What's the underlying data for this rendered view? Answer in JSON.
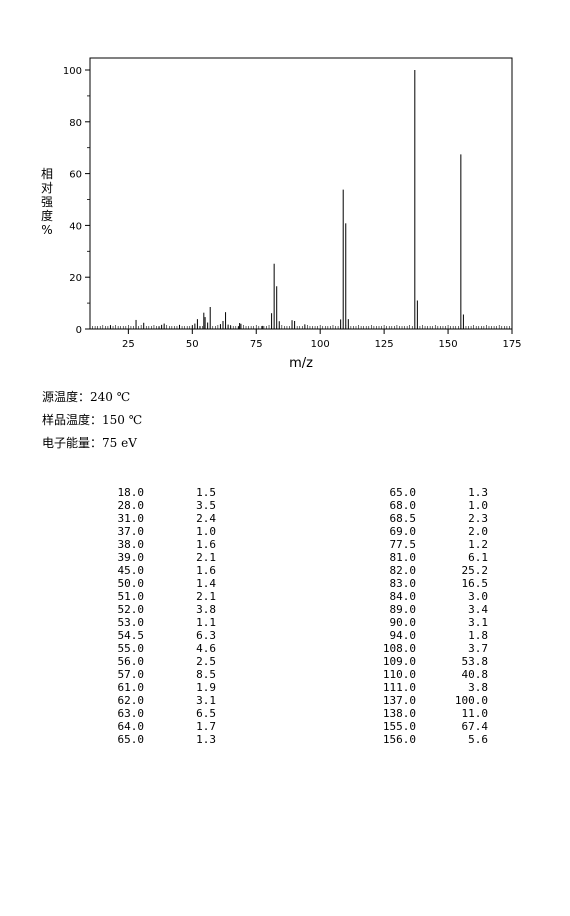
{
  "chart_data": {
    "type": "bar",
    "xlabel": "m/z",
    "ylabel": "相对强度%",
    "xlim": [
      10,
      175
    ],
    "ylim": [
      0,
      105
    ],
    "xticks": [
      25,
      50,
      75,
      100,
      125,
      150,
      175
    ],
    "yticks": [
      0,
      20,
      40,
      60,
      80,
      100
    ],
    "grid": false,
    "peaks": [
      [
        18.0,
        1.5
      ],
      [
        28.0,
        3.5
      ],
      [
        31.0,
        2.4
      ],
      [
        37.0,
        1.0
      ],
      [
        38.0,
        1.6
      ],
      [
        39.0,
        2.1
      ],
      [
        45.0,
        1.6
      ],
      [
        50.0,
        1.4
      ],
      [
        51.0,
        2.1
      ],
      [
        52.0,
        3.8
      ],
      [
        53.0,
        1.1
      ],
      [
        54.5,
        6.3
      ],
      [
        55.0,
        4.6
      ],
      [
        56.0,
        2.5
      ],
      [
        57.0,
        8.5
      ],
      [
        61.0,
        1.9
      ],
      [
        62.0,
        3.1
      ],
      [
        63.0,
        6.5
      ],
      [
        64.0,
        1.7
      ],
      [
        65.0,
        1.3
      ],
      [
        68.0,
        1.0
      ],
      [
        68.5,
        2.3
      ],
      [
        69.0,
        2.0
      ],
      [
        77.5,
        1.2
      ],
      [
        81.0,
        6.1
      ],
      [
        82.0,
        25.2
      ],
      [
        83.0,
        16.5
      ],
      [
        84.0,
        3.0
      ],
      [
        89.0,
        3.4
      ],
      [
        90.0,
        3.1
      ],
      [
        94.0,
        1.8
      ],
      [
        108.0,
        3.7
      ],
      [
        109.0,
        53.8
      ],
      [
        110.0,
        40.8
      ],
      [
        111.0,
        3.8
      ],
      [
        137.0,
        100.0
      ],
      [
        138.0,
        11.0
      ],
      [
        155.0,
        67.4
      ],
      [
        156.0,
        5.6
      ]
    ]
  },
  "conditions": [
    {
      "label": "源温度",
      "value": "240 ℃"
    },
    {
      "label": "样品温度",
      "value": "150 ℃"
    },
    {
      "label": "电子能量",
      "value": "75 eV"
    }
  ],
  "table": {
    "col1": [
      [
        "18.0",
        "1.5"
      ],
      [
        "28.0",
        "3.5"
      ],
      [
        "31.0",
        "2.4"
      ],
      [
        "37.0",
        "1.0"
      ],
      [
        "38.0",
        "1.6"
      ],
      [
        "39.0",
        "2.1"
      ],
      [
        "45.0",
        "1.6"
      ],
      [
        "50.0",
        "1.4"
      ],
      [
        "51.0",
        "2.1"
      ],
      [
        "52.0",
        "3.8"
      ],
      [
        "53.0",
        "1.1"
      ],
      [
        "54.5",
        "6.3"
      ],
      [
        "55.0",
        "4.6"
      ],
      [
        "56.0",
        "2.5"
      ],
      [
        "57.0",
        "8.5"
      ],
      [
        "61.0",
        "1.9"
      ],
      [
        "62.0",
        "3.1"
      ],
      [
        "63.0",
        "6.5"
      ],
      [
        "64.0",
        "1.7"
      ],
      [
        "65.0",
        "1.3"
      ]
    ],
    "col2": [
      [
        "65.0",
        "1.3"
      ],
      [
        "68.0",
        "1.0"
      ],
      [
        "68.5",
        "2.3"
      ],
      [
        "69.0",
        "2.0"
      ],
      [
        "77.5",
        "1.2"
      ],
      [
        "81.0",
        "6.1"
      ],
      [
        "82.0",
        "25.2"
      ],
      [
        "83.0",
        "16.5"
      ],
      [
        "84.0",
        "3.0"
      ],
      [
        "89.0",
        "3.4"
      ],
      [
        "90.0",
        "3.1"
      ],
      [
        "94.0",
        "1.8"
      ],
      [
        "108.0",
        "3.7"
      ],
      [
        "109.0",
        "53.8"
      ],
      [
        "110.0",
        "40.8"
      ],
      [
        "111.0",
        "3.8"
      ],
      [
        "137.0",
        "100.0"
      ],
      [
        "138.0",
        "11.0"
      ],
      [
        "155.0",
        "67.4"
      ],
      [
        "156.0",
        "5.6"
      ]
    ]
  }
}
